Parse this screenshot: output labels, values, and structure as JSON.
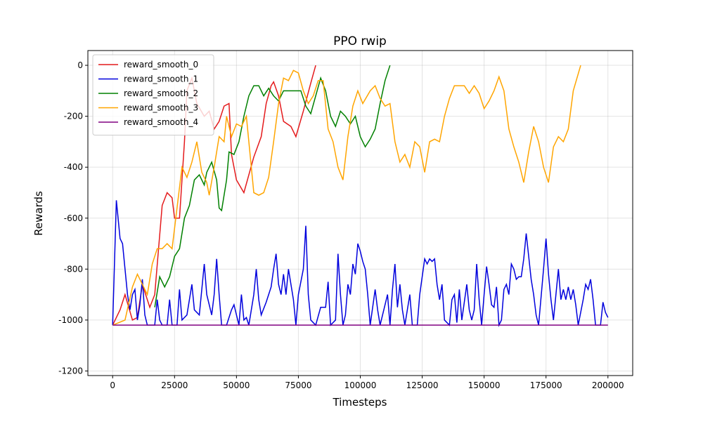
{
  "chart_data": {
    "type": "line",
    "title": "PPO rwip",
    "x_label": "Timesteps",
    "y_label": "Rewards",
    "xlim": [
      -10000,
      210000
    ],
    "ylim": [
      -1218,
      58
    ],
    "xticks": [
      0,
      25000,
      50000,
      75000,
      100000,
      125000,
      150000,
      175000,
      200000
    ],
    "yticks": [
      0,
      -200,
      -400,
      -600,
      -800,
      -1000,
      -1200
    ],
    "grid": true,
    "legend": "upper left",
    "series": [
      {
        "name": "reward_smooth_0",
        "color": "#e41a1c",
        "x": [
          0,
          3000,
          5000,
          8000,
          10000,
          12000,
          15000,
          17000,
          20000,
          22000,
          24000,
          25000,
          27000,
          29000,
          30000,
          32000,
          34000,
          37000,
          39000,
          41000,
          43000,
          45000,
          47000,
          48000,
          50000,
          53000,
          55000,
          57000,
          60000,
          62000,
          64000,
          65000,
          67000,
          69000,
          72000,
          74000,
          77000,
          80000,
          82000
        ],
        "values": [
          -1020,
          -960,
          -900,
          -1000,
          -990,
          -860,
          -950,
          -900,
          -550,
          -500,
          -520,
          -600,
          -600,
          -300,
          -100,
          -50,
          -150,
          -200,
          -180,
          -250,
          -220,
          -160,
          -150,
          -350,
          -450,
          -500,
          -430,
          -360,
          -280,
          -150,
          -80,
          -65,
          -120,
          -220,
          -240,
          -280,
          -180,
          -70,
          0
        ]
      },
      {
        "name": "reward_smooth_1",
        "color": "#0000dd",
        "x": [
          0,
          1500,
          3000,
          4000,
          6000,
          7000,
          8000,
          9000,
          10000,
          11000,
          12000,
          13000,
          14000,
          17000,
          18000,
          19000,
          20000,
          22000,
          23000,
          24000,
          26000,
          27000,
          28000,
          30000,
          32000,
          33000,
          35000,
          37000,
          38000,
          40000,
          41000,
          42000,
          43000,
          44000,
          46000,
          48000,
          49000,
          51000,
          52000,
          53000,
          54000,
          55000,
          57000,
          58000,
          59000,
          60000,
          62000,
          64000,
          65000,
          66000,
          67000,
          68000,
          69000,
          70000,
          71000,
          72000,
          73000,
          74000,
          75000,
          77000,
          78000,
          79000,
          80000,
          82000,
          84000,
          86000,
          87000,
          88000,
          90000,
          91000,
          92000,
          93000,
          94000,
          95000,
          96000,
          97000,
          98000,
          99000,
          100000,
          101000,
          102000,
          103000,
          104000,
          106000,
          107000,
          108000,
          111000,
          112000,
          113000,
          114000,
          115000,
          116000,
          117000,
          118000,
          120000,
          121000,
          123000,
          124000,
          126000,
          127000,
          128000,
          129000,
          130000,
          131000,
          132000,
          133000,
          134000,
          136000,
          137000,
          138000,
          139000,
          140000,
          141000,
          143000,
          144000,
          145000,
          146000,
          147000,
          148000,
          149000,
          150000,
          151000,
          152000,
          153000,
          154000,
          155000,
          156000,
          157000,
          158000,
          159000,
          160000,
          161000,
          162000,
          163000,
          164000,
          165000,
          166000,
          167000,
          168000,
          169000,
          170000,
          171000,
          172000,
          174000,
          175000,
          176000,
          177000,
          178000,
          179000,
          180000,
          181000,
          182000,
          183000,
          184000,
          185000,
          186000,
          187000,
          188000,
          190000,
          191000,
          192000,
          193000,
          194000,
          195000,
          197000,
          198000,
          199000,
          200000
        ],
        "values": [
          -1020,
          -530,
          -680,
          -700,
          -900,
          -960,
          -900,
          -880,
          -1000,
          -940,
          -840,
          -980,
          -1020,
          -1020,
          -920,
          -1000,
          -1020,
          -1020,
          -920,
          -1020,
          -1020,
          -880,
          -1000,
          -980,
          -860,
          -960,
          -980,
          -780,
          -900,
          -980,
          -900,
          -760,
          -900,
          -1020,
          -1020,
          -960,
          -940,
          -1020,
          -900,
          -1000,
          -990,
          -1020,
          -900,
          -800,
          -920,
          -980,
          -930,
          -870,
          -800,
          -740,
          -860,
          -900,
          -820,
          -900,
          -800,
          -860,
          -920,
          -1020,
          -900,
          -800,
          -630,
          -900,
          -1000,
          -1020,
          -950,
          -950,
          -850,
          -1020,
          -1000,
          -740,
          -900,
          -1020,
          -980,
          -860,
          -900,
          -780,
          -820,
          -700,
          -730,
          -770,
          -800,
          -900,
          -1020,
          -880,
          -960,
          -1020,
          -900,
          -1020,
          -880,
          -780,
          -950,
          -860,
          -960,
          -1020,
          -900,
          -1020,
          -1020,
          -900,
          -760,
          -780,
          -760,
          -770,
          -760,
          -860,
          -920,
          -860,
          -1000,
          -1020,
          -920,
          -900,
          -1010,
          -880,
          -1000,
          -860,
          -960,
          -1000,
          -960,
          -780,
          -920,
          -1020,
          -900,
          -790,
          -860,
          -940,
          -950,
          -870,
          -1020,
          -1000,
          -880,
          -860,
          -900,
          -780,
          -800,
          -840,
          -830,
          -830,
          -760,
          -660,
          -750,
          -840,
          -900,
          -980,
          -1020,
          -800,
          -680,
          -820,
          -920,
          -1000,
          -900,
          -800,
          -920,
          -880,
          -920,
          -870,
          -920,
          -880,
          -940,
          -1020,
          -920,
          -860,
          -880,
          -840,
          -920,
          -1020,
          -1020,
          -930,
          -970,
          -990
        ]
      },
      {
        "name": "reward_smooth_2",
        "color": "#008000",
        "x": [
          17000,
          19000,
          21000,
          23000,
          25000,
          27000,
          29000,
          31000,
          33000,
          35000,
          37000,
          38000,
          40000,
          42000,
          43000,
          44000,
          46000,
          47000,
          49000,
          51000,
          53000,
          55000,
          57000,
          59000,
          61000,
          63000,
          65000,
          67000,
          69000,
          72000,
          76000,
          78000,
          80000,
          82000,
          84000,
          86000,
          88000,
          90000,
          92000,
          94000,
          96000,
          98000,
          100000,
          102000,
          104000,
          106000,
          108000,
          110000,
          112000
        ],
        "values": [
          -950,
          -830,
          -870,
          -830,
          -750,
          -720,
          -600,
          -550,
          -450,
          -430,
          -470,
          -420,
          -380,
          -450,
          -560,
          -570,
          -450,
          -340,
          -350,
          -300,
          -200,
          -120,
          -80,
          -80,
          -120,
          -90,
          -120,
          -140,
          -100,
          -100,
          -100,
          -160,
          -190,
          -120,
          -50,
          -100,
          -200,
          -240,
          -180,
          -200,
          -230,
          -200,
          -280,
          -320,
          -290,
          -250,
          -150,
          -60,
          0
        ]
      },
      {
        "name": "reward_smooth_3",
        "color": "#ffa500",
        "x": [
          0,
          5000,
          8000,
          10000,
          12000,
          14000,
          16000,
          18000,
          20000,
          22000,
          24000,
          26000,
          28000,
          30000,
          32000,
          34000,
          36000,
          38000,
          39000,
          41000,
          43000,
          45000,
          46000,
          48000,
          50000,
          52000,
          54000,
          57000,
          59000,
          61000,
          63000,
          65000,
          67000,
          69000,
          71000,
          73000,
          75000,
          77000,
          79000,
          81000,
          83000,
          85000,
          87000,
          89000,
          91000,
          93000,
          95000,
          97000,
          99000,
          101000,
          104000,
          106000,
          108000,
          110000,
          112000,
          114000,
          116000,
          118000,
          120000,
          122000,
          124000,
          126000,
          128000,
          130000,
          132000,
          134000,
          136000,
          138000,
          142000,
          144000,
          146000,
          148000,
          150000,
          152000,
          154000,
          156000,
          158000,
          160000,
          162000,
          164000,
          166000,
          168000,
          170000,
          172000,
          174000,
          176000,
          178000,
          180000,
          182000,
          184000,
          186000,
          189000
        ],
        "values": [
          -1020,
          -1000,
          -870,
          -820,
          -860,
          -900,
          -780,
          -720,
          -720,
          -700,
          -720,
          -560,
          -400,
          -440,
          -380,
          -300,
          -420,
          -460,
          -510,
          -400,
          -280,
          -300,
          -200,
          -280,
          -230,
          -240,
          -200,
          -500,
          -510,
          -500,
          -440,
          -300,
          -150,
          -50,
          -60,
          -20,
          -30,
          -100,
          -150,
          -120,
          -60,
          -60,
          -250,
          -300,
          -400,
          -450,
          -280,
          -160,
          -100,
          -150,
          -100,
          -80,
          -130,
          -160,
          -150,
          -300,
          -380,
          -350,
          -400,
          -300,
          -320,
          -420,
          -300,
          -290,
          -300,
          -200,
          -130,
          -80,
          -80,
          -110,
          -80,
          -110,
          -170,
          -140,
          -100,
          -45,
          -100,
          -250,
          -320,
          -380,
          -460,
          -340,
          -240,
          -300,
          -400,
          -460,
          -320,
          -280,
          -300,
          -250,
          -100,
          0
        ]
      },
      {
        "name": "reward_smooth_4",
        "color": "#800080",
        "x": [
          0,
          50000,
          100000,
          150000,
          200000
        ],
        "values": [
          -1020,
          -1020,
          -1020,
          -1020,
          -1020
        ]
      }
    ]
  }
}
